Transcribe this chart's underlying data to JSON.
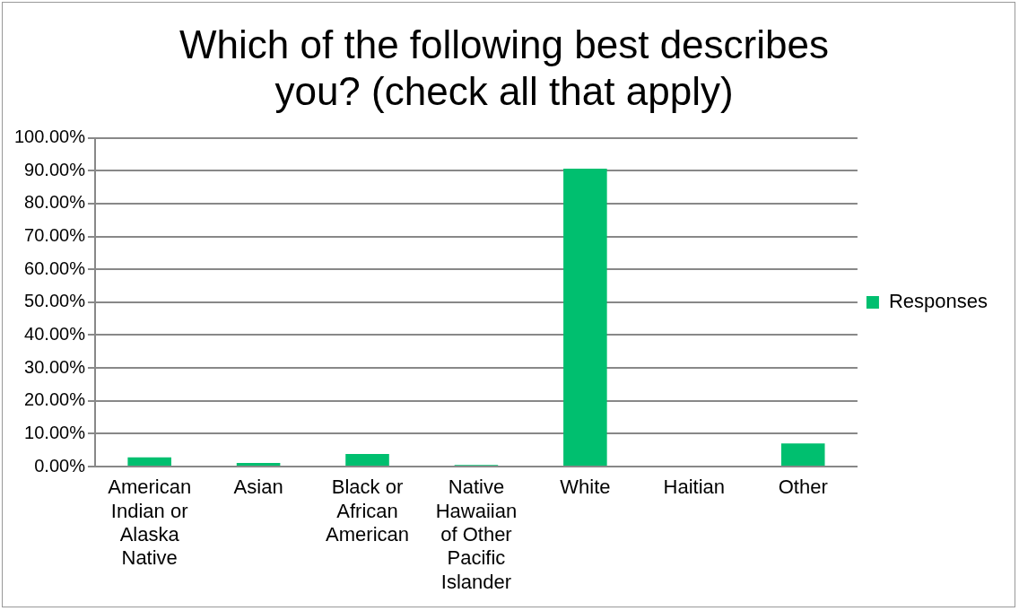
{
  "chart_data": {
    "type": "bar",
    "title": "Which of the following best describes you? (check all that apply)",
    "categories": [
      "American Indian or Alaska Native",
      "Asian",
      "Black or African American",
      "Native Hawaiian of Other Pacific Islander",
      "White",
      "Haitian",
      "Other"
    ],
    "series": [
      {
        "name": "Responses",
        "color": "#00bf6f",
        "values": [
          2.8,
          1.1,
          3.8,
          0.5,
          90.6,
          0,
          7.0
        ]
      }
    ],
    "ylim": [
      0,
      100
    ],
    "yticks": [
      {
        "value": 0,
        "label": "0.00%"
      },
      {
        "value": 10,
        "label": "10.00%"
      },
      {
        "value": 20,
        "label": "20.00%"
      },
      {
        "value": 30,
        "label": "30.00%"
      },
      {
        "value": 40,
        "label": "40.00%"
      },
      {
        "value": 50,
        "label": "50.00%"
      },
      {
        "value": 60,
        "label": "60.00%"
      },
      {
        "value": 70,
        "label": "70.00%"
      },
      {
        "value": 80,
        "label": "80.00%"
      },
      {
        "value": 90,
        "label": "90.00%"
      },
      {
        "value": 100,
        "label": "100.00%"
      }
    ],
    "grid": "y",
    "legend": "right"
  }
}
